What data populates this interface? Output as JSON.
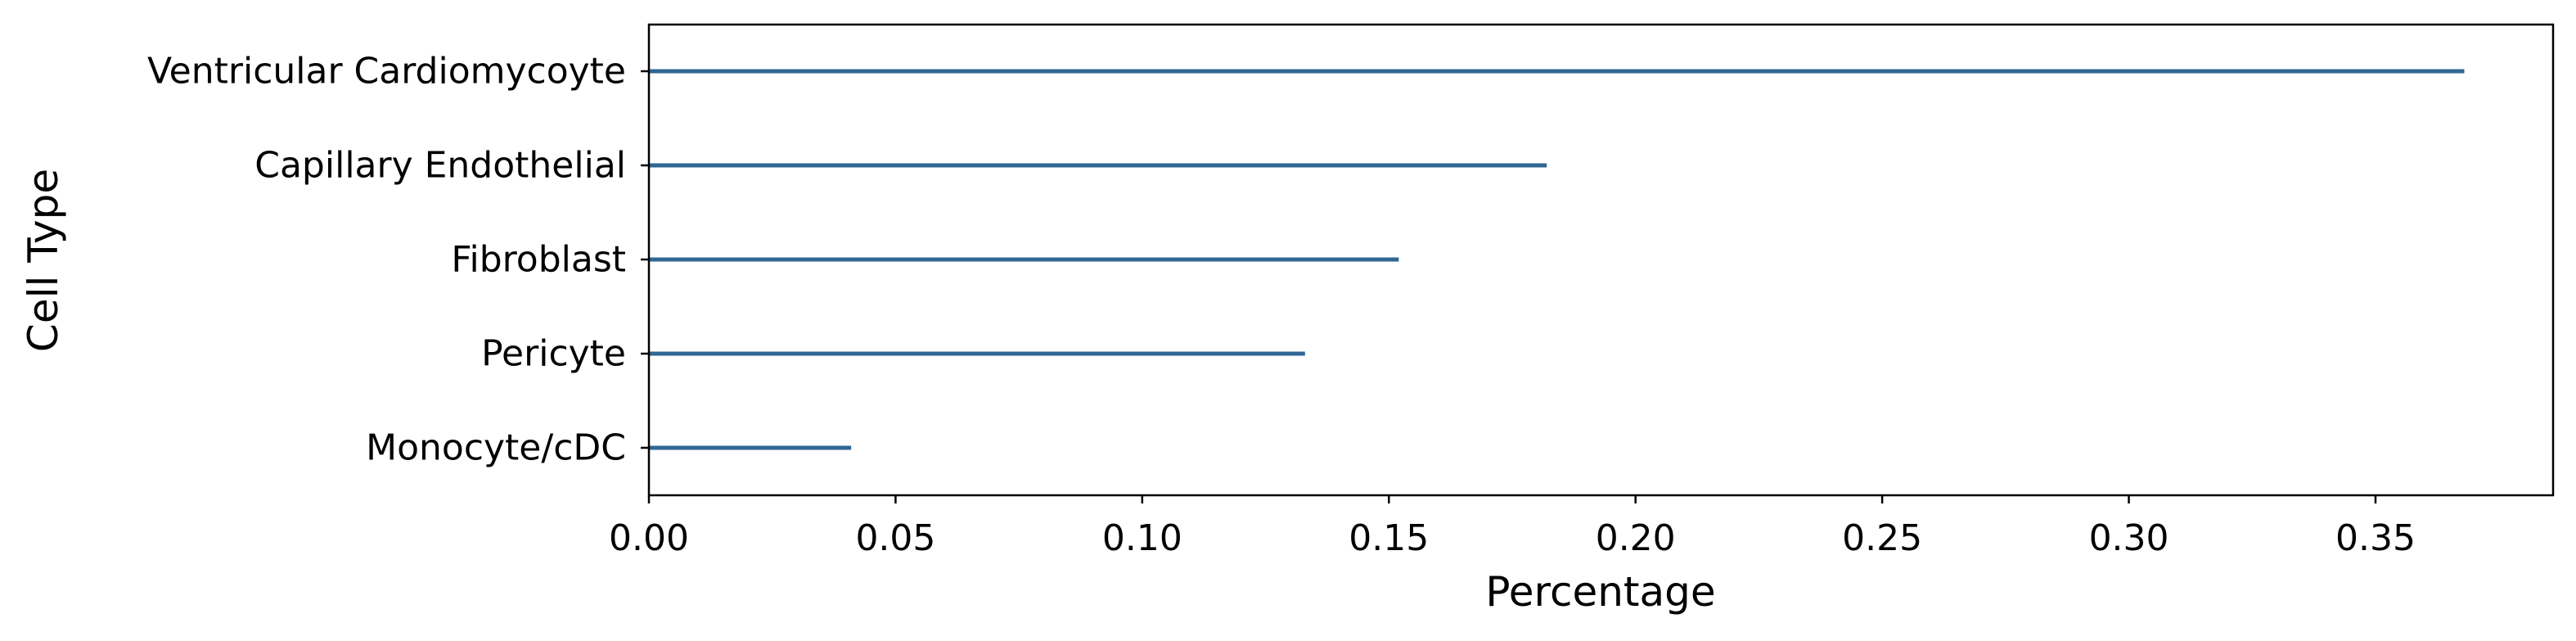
{
  "chart_data": {
    "type": "bar",
    "orientation": "horizontal",
    "categories": [
      "Ventricular Cardiomycoyte",
      "Capillary Endothelial",
      "Fibroblast",
      "Pericyte",
      "Monocyte/cDC"
    ],
    "values": [
      0.368,
      0.182,
      0.152,
      0.133,
      0.041
    ],
    "xlabel": "Percentage",
    "ylabel": "Cell Type",
    "xlim": [
      0.0,
      0.386
    ],
    "xticks": [
      "0.00",
      "0.05",
      "0.10",
      "0.15",
      "0.20",
      "0.25",
      "0.30",
      "0.35"
    ],
    "grid": false,
    "bar_color": "#2f6694"
  }
}
